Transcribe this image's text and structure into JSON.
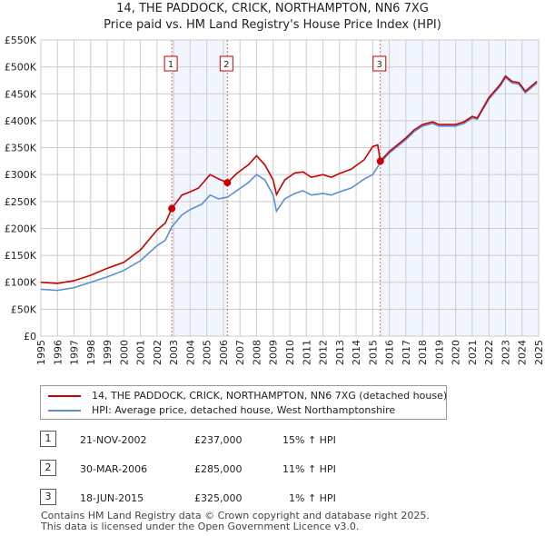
{
  "title": "14, THE PADDOCK, CRICK, NORTHAMPTON, NN6 7XG",
  "subtitle": "Price paid vs. HM Land Registry's House Price Index (HPI)",
  "chart_data": {
    "type": "line",
    "xlim": [
      1995,
      2025
    ],
    "ylim": [
      0,
      550000
    ],
    "x_ticks": [
      "1995",
      "1996",
      "1997",
      "1998",
      "1999",
      "2000",
      "2001",
      "2002",
      "2003",
      "2004",
      "2005",
      "2006",
      "2007",
      "2008",
      "2009",
      "2010",
      "2011",
      "2012",
      "2013",
      "2014",
      "2015",
      "2016",
      "2017",
      "2018",
      "2019",
      "2020",
      "2021",
      "2022",
      "2023",
      "2024",
      "2025"
    ],
    "y_ticks": [
      {
        "v": 0,
        "label": "£0"
      },
      {
        "v": 50000,
        "label": "£50K"
      },
      {
        "v": 100000,
        "label": "£100K"
      },
      {
        "v": 150000,
        "label": "£150K"
      },
      {
        "v": 200000,
        "label": "£200K"
      },
      {
        "v": 250000,
        "label": "£250K"
      },
      {
        "v": 300000,
        "label": "£300K"
      },
      {
        "v": 350000,
        "label": "£350K"
      },
      {
        "v": 400000,
        "label": "£400K"
      },
      {
        "v": 450000,
        "label": "£450K"
      },
      {
        "v": 500000,
        "label": "£500K"
      },
      {
        "v": 550000,
        "label": "£550K"
      }
    ],
    "series": [
      {
        "name": "14, THE PADDOCK, CRICK, NORTHAMPTON, NN6 7XG (detached house)",
        "color": "#cc0000",
        "points": [
          [
            1995,
            100
          ],
          [
            1996,
            98
          ],
          [
            1997,
            103
          ],
          [
            1998,
            113
          ],
          [
            1999,
            126
          ],
          [
            2000,
            137
          ],
          [
            2001,
            160
          ],
          [
            2002,
            197
          ],
          [
            2002.5,
            210
          ],
          [
            2002.89,
            237
          ],
          [
            2003.5,
            262
          ],
          [
            2004,
            268
          ],
          [
            2004.5,
            275
          ],
          [
            2005.2,
            300
          ],
          [
            2005.7,
            292
          ],
          [
            2006.24,
            285
          ],
          [
            2006.8,
            302
          ],
          [
            2007.5,
            318
          ],
          [
            2008,
            335
          ],
          [
            2008.5,
            318
          ],
          [
            2009,
            290
          ],
          [
            2009.2,
            263
          ],
          [
            2009.7,
            290
          ],
          [
            2010.3,
            303
          ],
          [
            2010.8,
            305
          ],
          [
            2011.3,
            295
          ],
          [
            2012,
            300
          ],
          [
            2012.5,
            295
          ],
          [
            2013,
            302
          ],
          [
            2013.7,
            310
          ],
          [
            2014.5,
            328
          ],
          [
            2015,
            352
          ],
          [
            2015.3,
            355
          ],
          [
            2015.46,
            325
          ],
          [
            2016,
            343
          ],
          [
            2017,
            368
          ],
          [
            2017.5,
            383
          ],
          [
            2018,
            393
          ],
          [
            2018.6,
            398
          ],
          [
            2019,
            393
          ],
          [
            2020,
            393
          ],
          [
            2020.5,
            398
          ],
          [
            2021,
            408
          ],
          [
            2021.3,
            405
          ],
          [
            2022,
            443
          ],
          [
            2022.7,
            468
          ],
          [
            2023,
            483
          ],
          [
            2023.4,
            473
          ],
          [
            2023.8,
            471
          ],
          [
            2024.2,
            455
          ],
          [
            2024.9,
            473
          ]
        ]
      },
      {
        "name": "HPI: Average price, detached house, West Northamptonshire",
        "color": "#5b8fd4",
        "points": [
          [
            1995,
            87
          ],
          [
            1996,
            85
          ],
          [
            1997,
            90
          ],
          [
            1998,
            100
          ],
          [
            1999,
            110
          ],
          [
            2000,
            122
          ],
          [
            2001,
            140
          ],
          [
            2002,
            168
          ],
          [
            2002.5,
            178
          ],
          [
            2002.89,
            203
          ],
          [
            2003.5,
            225
          ],
          [
            2004,
            235
          ],
          [
            2004.7,
            245
          ],
          [
            2005.2,
            262
          ],
          [
            2005.7,
            255
          ],
          [
            2006.24,
            258
          ],
          [
            2006.8,
            270
          ],
          [
            2007.5,
            285
          ],
          [
            2008,
            300
          ],
          [
            2008.5,
            290
          ],
          [
            2009,
            262
          ],
          [
            2009.2,
            232
          ],
          [
            2009.7,
            255
          ],
          [
            2010.3,
            265
          ],
          [
            2010.8,
            270
          ],
          [
            2011.3,
            262
          ],
          [
            2012,
            265
          ],
          [
            2012.5,
            262
          ],
          [
            2013,
            268
          ],
          [
            2013.7,
            275
          ],
          [
            2014.5,
            292
          ],
          [
            2015,
            300
          ],
          [
            2015.46,
            322
          ],
          [
            2016,
            340
          ],
          [
            2017,
            365
          ],
          [
            2017.5,
            380
          ],
          [
            2018,
            390
          ],
          [
            2018.6,
            395
          ],
          [
            2019,
            390
          ],
          [
            2020,
            390
          ],
          [
            2020.5,
            395
          ],
          [
            2021,
            405
          ],
          [
            2021.3,
            403
          ],
          [
            2022,
            440
          ],
          [
            2022.7,
            465
          ],
          [
            2023,
            480
          ],
          [
            2023.4,
            470
          ],
          [
            2023.8,
            468
          ],
          [
            2024.2,
            452
          ],
          [
            2024.9,
            470
          ]
        ]
      }
    ],
    "y_unit": "thousands GBP",
    "sales": [
      {
        "n": "1",
        "x": 2002.89,
        "y": 237
      },
      {
        "n": "2",
        "x": 2006.24,
        "y": 285
      },
      {
        "n": "3",
        "x": 2015.46,
        "y": 325
      }
    ],
    "shaded_ranges": [
      [
        2002.89,
        2006.24
      ],
      [
        2015.46,
        2025
      ]
    ]
  },
  "legend": [
    "14, THE PADDOCK, CRICK, NORTHAMPTON, NN6 7XG (detached house)",
    "HPI: Average price, detached house, West Northamptonshire"
  ],
  "transactions": [
    {
      "n": "1",
      "date": "21-NOV-2002",
      "price": "£237,000",
      "hpi": "15% ↑ HPI"
    },
    {
      "n": "2",
      "date": "30-MAR-2006",
      "price": "£285,000",
      "hpi": "11% ↑ HPI"
    },
    {
      "n": "3",
      "date": "18-JUN-2015",
      "price": "£325,000",
      "hpi": "1% ↑ HPI"
    }
  ],
  "footer": [
    "Contains HM Land Registry data © Crown copyright and database right 2025.",
    "This data is licensed under the Open Government Licence v3.0."
  ]
}
